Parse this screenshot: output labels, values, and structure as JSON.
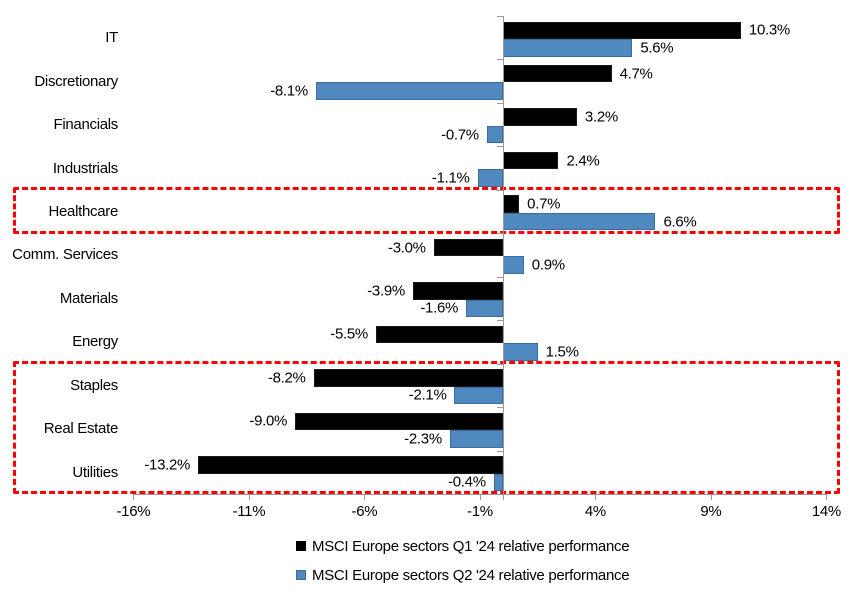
{
  "chart_data": {
    "type": "bar",
    "orientation": "horizontal",
    "title": "",
    "categories": [
      "IT",
      "Discretionary",
      "Financials",
      "Industrials",
      "Healthcare",
      "Comm. Services",
      "Materials",
      "Energy",
      "Staples",
      "Real Estate",
      "Utilities"
    ],
    "series": [
      {
        "name": "MSCI Europe sectors Q1 '24 relative performance",
        "color": "#000000",
        "border_color": "#1a1a1a",
        "values": [
          10.3,
          4.7,
          3.2,
          2.4,
          0.7,
          -3.0,
          -3.9,
          -5.5,
          -8.2,
          -9.0,
          -13.2
        ],
        "labels": [
          "10.3%",
          "4.7%",
          "3.2%",
          "2.4%",
          "0.7%",
          "-3.0%",
          "-3.9%",
          "-5.5%",
          "-8.2%",
          "-9.0%",
          "-13.2%"
        ]
      },
      {
        "name": "MSCI Europe sectors Q2 '24 relative performance",
        "color": "#5088C0",
        "border_color": "#3D6C9B",
        "values": [
          5.6,
          -8.1,
          -0.7,
          -1.1,
          6.6,
          0.9,
          -1.6,
          1.5,
          -2.1,
          -2.3,
          -0.4
        ],
        "labels": [
          "5.6%",
          "-8.1%",
          "-0.7%",
          "-1.1%",
          "6.6%",
          "0.9%",
          "-1.6%",
          "1.5%",
          "-2.1%",
          "-2.3%",
          "-0.4%"
        ]
      }
    ],
    "x_axis": {
      "min": -16,
      "max": 14,
      "step": 5,
      "tick_labels": [
        "-16%",
        "-11%",
        "-6%",
        "-1%",
        "4%",
        "9%",
        "14%"
      ]
    },
    "grid": false,
    "legend_position": "bottom",
    "highlights": {
      "color": "#FF0000",
      "boxes": [
        {
          "sectors": [
            "Healthcare"
          ],
          "start_index": 4,
          "end_index": 4
        },
        {
          "sectors": [
            "Staples",
            "Real Estate",
            "Utilities"
          ],
          "start_index": 8,
          "end_index": 10
        }
      ]
    }
  }
}
